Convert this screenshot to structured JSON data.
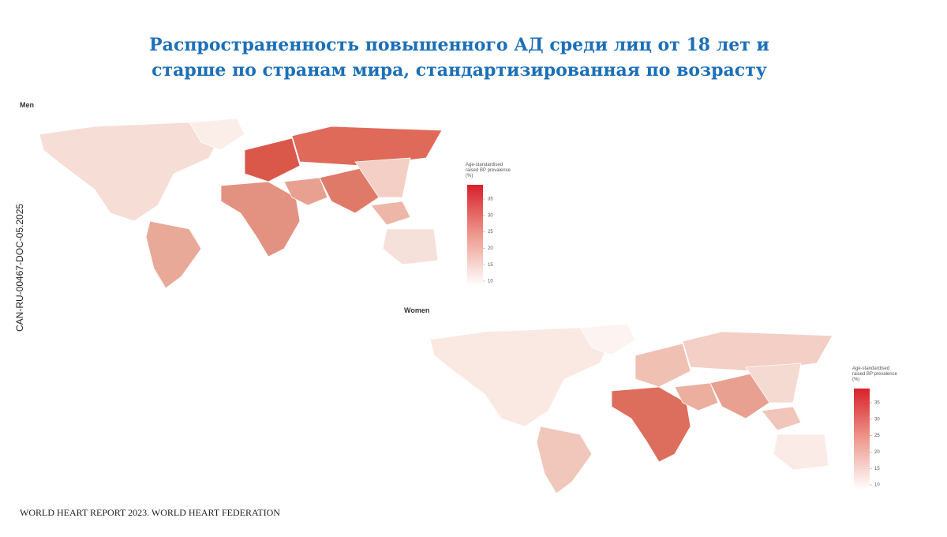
{
  "title": [
    "Распространенность повышенного АД среди лиц от 18 лет и",
    "старше по странам мира, стандартизированная по возрасту"
  ],
  "side_code": "CAN-RU-00467-DOC-05.2025",
  "source": "WORLD HEART REPORT 2023. WORLD HEART FEDERATION",
  "maps": [
    {
      "label": "Men",
      "legend": {
        "title": [
          "Age-standardised",
          "raised BP prevalence",
          "(%)"
        ],
        "ticks": [
          10,
          15,
          20,
          25,
          30,
          35
        ]
      }
    },
    {
      "label": "Women",
      "legend": {
        "title": [
          "Age-standardised",
          "raised BP prevalence",
          "(%)"
        ],
        "ticks": [
          10,
          15,
          20,
          25,
          30,
          35
        ]
      }
    }
  ]
}
